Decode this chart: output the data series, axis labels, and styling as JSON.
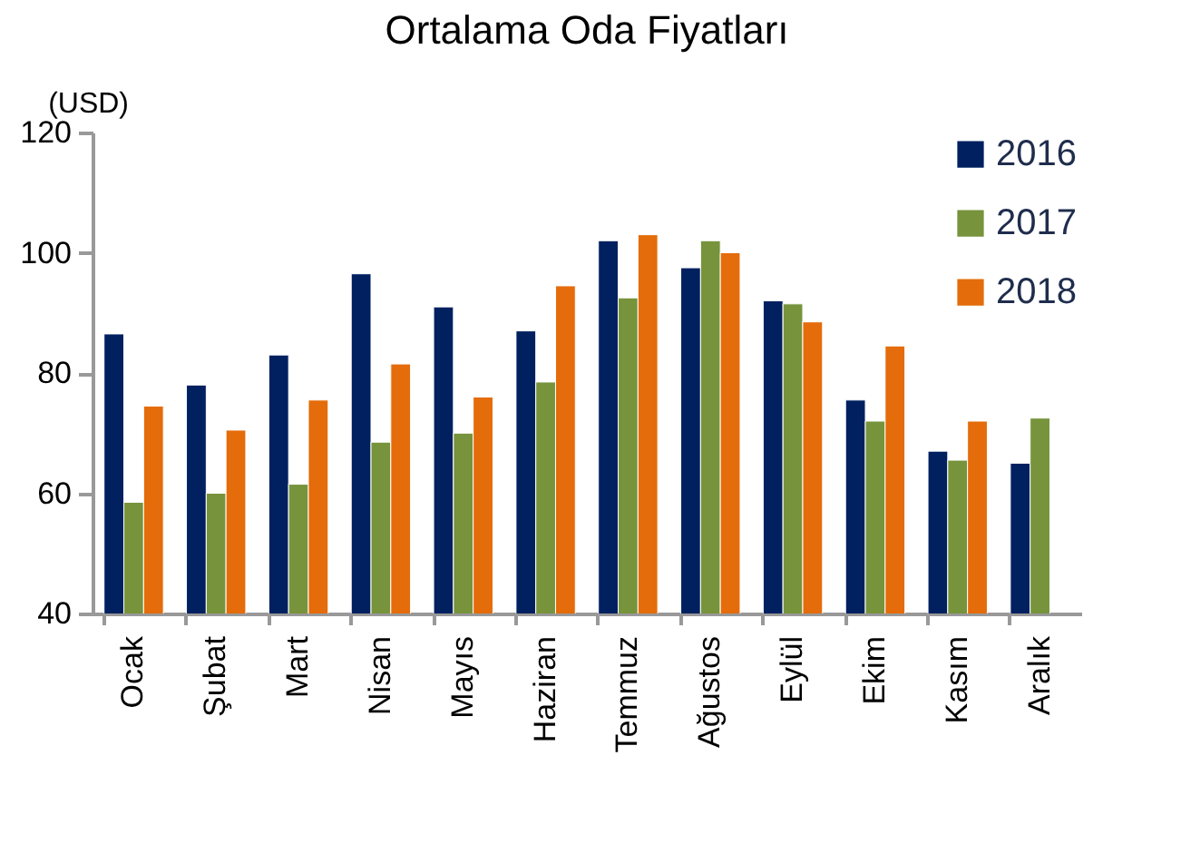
{
  "chart_data": {
    "type": "bar",
    "title": "Ortalama Oda Fiyatları",
    "ylabel": "(USD)",
    "categories": [
      "Ocak",
      "Şubat",
      "Mart",
      "Nisan",
      "Mayıs",
      "Haziran",
      "Temmuz",
      "Ağustos",
      "Eylül",
      "Ekim",
      "Kasım",
      "Aralık"
    ],
    "series": [
      {
        "name": "2016",
        "color": "#002060",
        "values": [
          86.5,
          78,
          83,
          96.5,
          91,
          87,
          102,
          97.5,
          92,
          75.5,
          67,
          65
        ]
      },
      {
        "name": "2017",
        "color": "#77933c",
        "values": [
          58.5,
          60,
          61.5,
          68.5,
          70,
          78.5,
          92.5,
          102,
          91.5,
          72,
          65.5,
          72.5
        ]
      },
      {
        "name": "2018",
        "color": "#e46c0a",
        "values": [
          74.5,
          70.5,
          75.5,
          81.5,
          76,
          94.5,
          103,
          100,
          88.5,
          84.5,
          72,
          null
        ]
      }
    ],
    "ylim": [
      40,
      120
    ],
    "yticks": [
      40,
      60,
      80,
      100,
      120
    ],
    "grid": false,
    "legend": "top right"
  }
}
